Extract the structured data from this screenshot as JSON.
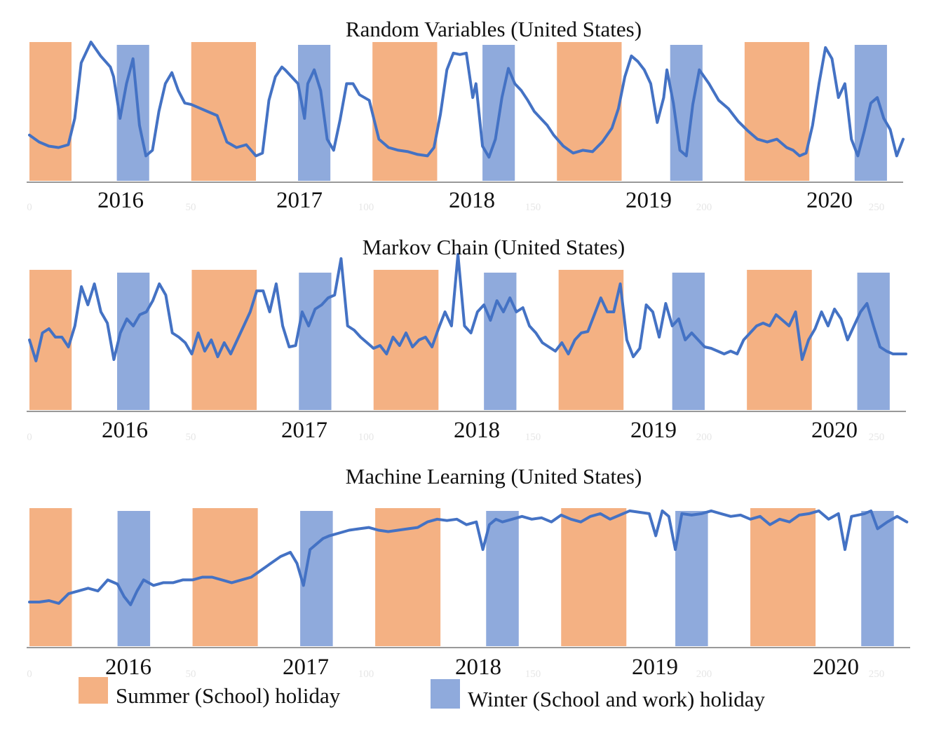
{
  "colors": {
    "series": "#4472c4",
    "summer": "#f4b183",
    "winter": "#8faadc",
    "axis": "#999999"
  },
  "legend": {
    "summer_label": "Summer (School) holiday",
    "winter_label": "Winter (School and work) holiday"
  },
  "chart_data": [
    {
      "type": "line",
      "title": "Random Variables (United States)",
      "x_range": [
        0,
        270
      ],
      "y_range": [
        0,
        100
      ],
      "x_ticks": [
        "0",
        "50",
        "100",
        "150",
        "200",
        "250"
      ],
      "year_labels": [
        "2016",
        "2017",
        "2018",
        "2019",
        "2020"
      ],
      "summer_holidays": [
        [
          0,
          13
        ],
        [
          50,
          70
        ],
        [
          106,
          126
        ],
        [
          163,
          183
        ],
        [
          221,
          241
        ]
      ],
      "winter_holidays": [
        [
          27,
          37
        ],
        [
          83,
          93
        ],
        [
          140,
          150
        ],
        [
          198,
          208
        ],
        [
          255,
          265
        ]
      ],
      "series": [
        {
          "x": [
            0,
            3,
            6,
            9,
            12,
            14,
            16,
            19,
            22,
            25,
            26,
            28,
            30,
            32,
            34,
            36,
            38,
            40,
            42,
            44,
            46,
            48,
            50,
            52,
            55,
            58,
            61,
            64,
            67,
            70,
            72,
            74,
            76,
            78,
            79,
            81,
            83,
            85,
            86,
            88,
            90,
            92,
            94,
            96,
            98,
            100,
            102,
            105,
            108,
            111,
            114,
            117,
            120,
            123,
            125,
            127,
            129,
            131,
            133,
            135,
            137,
            138,
            140,
            142,
            144,
            146,
            148,
            150,
            152,
            154,
            156,
            158,
            160,
            162,
            165,
            168,
            171,
            174,
            177,
            180,
            182,
            184,
            186,
            188,
            190,
            192,
            194,
            196,
            197,
            199,
            201,
            203,
            205,
            207,
            210,
            213,
            216,
            219,
            222,
            225,
            228,
            231,
            234,
            236,
            238,
            240,
            242,
            244,
            246,
            248,
            250,
            252,
            254,
            256,
            258,
            260,
            262,
            264,
            266,
            268,
            270
          ],
          "y": [
            33,
            28,
            25,
            24,
            26,
            45,
            85,
            100,
            90,
            82,
            75,
            45,
            70,
            88,
            40,
            18,
            22,
            50,
            70,
            78,
            65,
            56,
            55,
            53,
            50,
            47,
            28,
            24,
            26,
            18,
            20,
            58,
            75,
            82,
            80,
            75,
            70,
            45,
            70,
            80,
            65,
            30,
            22,
            44,
            70,
            70,
            62,
            58,
            30,
            24,
            22,
            21,
            19,
            18,
            24,
            48,
            80,
            92,
            91,
            92,
            60,
            70,
            25,
            17,
            30,
            60,
            81,
            70,
            65,
            58,
            50,
            45,
            40,
            33,
            25,
            20,
            22,
            21,
            28,
            38,
            52,
            75,
            90,
            86,
            80,
            70,
            42,
            60,
            80,
            56,
            22,
            18,
            55,
            80,
            70,
            58,
            52,
            43,
            36,
            30,
            28,
            30,
            24,
            22,
            18,
            20,
            40,
            70,
            96,
            88,
            60,
            70,
            30,
            18,
            36,
            56,
            60,
            45,
            37,
            18,
            30
          ]
        }
      ]
    },
    {
      "type": "line",
      "title": "Markov Chain (United States)",
      "x_range": [
        0,
        270
      ],
      "y_range": [
        0,
        100
      ],
      "x_ticks": [
        "0",
        "50",
        "100",
        "150",
        "200",
        "250"
      ],
      "year_labels": [
        "2016",
        "2017",
        "2018",
        "2019",
        "2020"
      ],
      "summer_holidays": [
        [
          0,
          13
        ],
        [
          50,
          70
        ],
        [
          106,
          126
        ],
        [
          163,
          183
        ],
        [
          221,
          241
        ]
      ],
      "winter_holidays": [
        [
          27,
          37
        ],
        [
          83,
          93
        ],
        [
          140,
          150
        ],
        [
          198,
          208
        ],
        [
          255,
          265
        ]
      ],
      "series": [
        {
          "x": [
            0,
            2,
            4,
            6,
            8,
            10,
            12,
            14,
            16,
            18,
            20,
            22,
            24,
            26,
            28,
            30,
            32,
            34,
            36,
            38,
            40,
            42,
            44,
            46,
            48,
            50,
            52,
            54,
            56,
            58,
            60,
            62,
            64,
            66,
            68,
            70,
            72,
            74,
            76,
            78,
            80,
            82,
            84,
            86,
            88,
            90,
            92,
            94,
            96,
            98,
            100,
            102,
            104,
            106,
            108,
            110,
            112,
            114,
            116,
            118,
            120,
            122,
            124,
            126,
            128,
            130,
            132,
            134,
            136,
            138,
            140,
            142,
            144,
            146,
            148,
            150,
            152,
            154,
            156,
            158,
            160,
            162,
            164,
            166,
            168,
            170,
            172,
            174,
            176,
            178,
            180,
            182,
            184,
            186,
            188,
            190,
            192,
            194,
            196,
            198,
            200,
            202,
            204,
            206,
            208,
            210,
            212,
            214,
            216,
            218,
            220,
            222,
            224,
            226,
            228,
            230,
            232,
            234,
            236,
            238,
            240,
            242,
            244,
            246,
            248,
            250,
            252,
            254,
            256,
            258,
            260,
            262,
            264,
            266,
            268,
            270
          ],
          "y": [
            50,
            35,
            55,
            58,
            52,
            52,
            45,
            60,
            88,
            75,
            90,
            70,
            62,
            36,
            55,
            65,
            60,
            68,
            70,
            78,
            90,
            82,
            55,
            52,
            48,
            40,
            55,
            42,
            50,
            38,
            48,
            40,
            50,
            60,
            70,
            85,
            85,
            70,
            90,
            60,
            45,
            46,
            70,
            60,
            72,
            75,
            80,
            82,
            108,
            60,
            57,
            52,
            48,
            44,
            46,
            40,
            52,
            46,
            55,
            45,
            50,
            52,
            45,
            58,
            70,
            60,
            111,
            60,
            55,
            70,
            75,
            64,
            78,
            70,
            80,
            70,
            73,
            60,
            55,
            48,
            45,
            42,
            48,
            40,
            50,
            55,
            56,
            68,
            80,
            70,
            70,
            90,
            50,
            38,
            44,
            75,
            70,
            52,
            76,
            60,
            65,
            50,
            55,
            50,
            45,
            44,
            42,
            40,
            42,
            40,
            50,
            55,
            60,
            62,
            60,
            68,
            64,
            60,
            70,
            36,
            50,
            58,
            70,
            60,
            72,
            65,
            50,
            60,
            70,
            76,
            60,
            45,
            42,
            40,
            40,
            40
          ],
          "note": null
        }
      ]
    },
    {
      "type": "line",
      "title": "Machine Learning (United States)",
      "x_range": [
        0,
        270
      ],
      "y_range": [
        0,
        100
      ],
      "x_ticks": [
        "0",
        "50",
        "100",
        "150",
        "200",
        "250"
      ],
      "year_labels": [
        "2016",
        "2017",
        "2018",
        "2019",
        "2020"
      ],
      "summer_holidays": [
        [
          0,
          13
        ],
        [
          50,
          70
        ],
        [
          106,
          126
        ],
        [
          163,
          183
        ],
        [
          221,
          241
        ]
      ],
      "winter_holidays": [
        [
          27,
          37
        ],
        [
          83,
          93
        ],
        [
          140,
          150
        ],
        [
          198,
          208
        ],
        [
          255,
          265
        ]
      ],
      "series": [
        {
          "x": [
            0,
            3,
            6,
            9,
            12,
            15,
            18,
            21,
            24,
            27,
            29,
            31,
            33,
            35,
            38,
            41,
            44,
            47,
            50,
            53,
            56,
            59,
            62,
            65,
            68,
            71,
            74,
            77,
            80,
            82,
            84,
            86,
            88,
            90,
            92,
            95,
            98,
            101,
            104,
            107,
            110,
            113,
            116,
            119,
            122,
            125,
            128,
            131,
            134,
            137,
            139,
            141,
            143,
            145,
            148,
            151,
            154,
            157,
            160,
            163,
            166,
            169,
            172,
            175,
            178,
            181,
            184,
            187,
            190,
            192,
            194,
            196,
            198,
            200,
            203,
            206,
            209,
            212,
            215,
            218,
            221,
            224,
            227,
            230,
            233,
            236,
            239,
            242,
            245,
            248,
            250,
            252,
            254,
            256,
            258,
            260,
            263,
            266,
            269
          ],
          "y": [
            32,
            32,
            33,
            31,
            38,
            40,
            42,
            40,
            48,
            45,
            36,
            30,
            40,
            48,
            44,
            46,
            46,
            48,
            48,
            50,
            50,
            48,
            46,
            48,
            50,
            55,
            60,
            65,
            68,
            60,
            44,
            70,
            74,
            78,
            80,
            82,
            84,
            85,
            86,
            84,
            83,
            84,
            85,
            86,
            90,
            92,
            91,
            92,
            88,
            90,
            70,
            88,
            92,
            90,
            92,
            94,
            92,
            93,
            90,
            95,
            92,
            90,
            94,
            96,
            92,
            95,
            98,
            97,
            96,
            80,
            98,
            94,
            70,
            96,
            95,
            96,
            98,
            96,
            94,
            95,
            92,
            94,
            88,
            92,
            90,
            95,
            96,
            98,
            92,
            96,
            70,
            94,
            95,
            96,
            98,
            85,
            90,
            94,
            90
          ],
          "note": null
        }
      ]
    }
  ]
}
